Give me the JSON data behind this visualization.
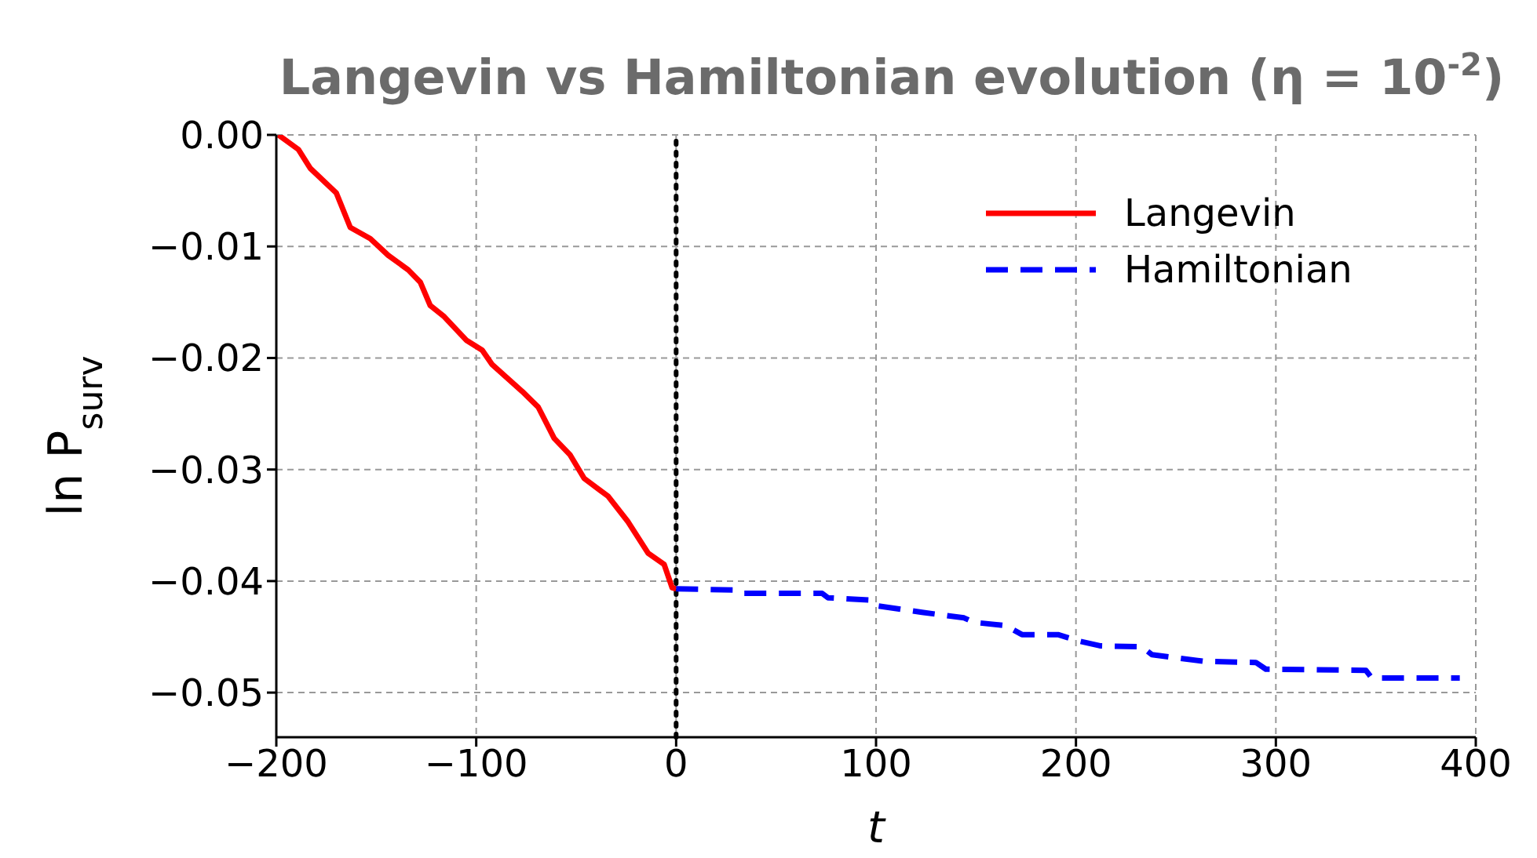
{
  "chart_data": {
    "type": "line",
    "title": "Langevin vs Hamiltonian evolution (η = 10$^{-2}$)",
    "xlabel": "t",
    "ylabel": "ln P$_{surv}$",
    "series": [
      {
        "name": "Langevin",
        "color": "#ff0000",
        "line_style": "solid",
        "x": [
          -199,
          -189,
          -183,
          -170,
          -163,
          -153,
          -144,
          -134,
          -128,
          -123,
          -116,
          -105,
          -97,
          -92,
          -77,
          -69,
          -61,
          -53,
          -46,
          -34,
          -24,
          -14,
          -6,
          -2,
          0
        ],
        "values": [
          0.0,
          -0.0013,
          -0.003,
          -0.0052,
          -0.0083,
          -0.0093,
          -0.0108,
          -0.0121,
          -0.0132,
          -0.0153,
          -0.0163,
          -0.0184,
          -0.0193,
          -0.0206,
          -0.023,
          -0.0244,
          -0.0272,
          -0.0287,
          -0.0308,
          -0.0324,
          -0.0347,
          -0.0375,
          -0.0385,
          -0.0406,
          -0.0407
        ]
      },
      {
        "name": "Hamiltonian",
        "color": "#0000ff",
        "line_style": "dashed",
        "x": [
          0,
          31,
          34,
          73,
          76,
          97,
          100,
          123,
          144,
          149,
          165,
          173,
          191,
          202,
          212,
          233,
          238,
          264,
          290,
          295,
          345,
          348,
          392
        ],
        "values": [
          -0.0407,
          -0.0408,
          -0.0411,
          -0.0411,
          -0.0415,
          -0.0417,
          -0.0422,
          -0.0428,
          -0.0433,
          -0.0437,
          -0.044,
          -0.0448,
          -0.0448,
          -0.0454,
          -0.0458,
          -0.0459,
          -0.0466,
          -0.0472,
          -0.0473,
          -0.0479,
          -0.048,
          -0.0487,
          -0.0487
        ]
      }
    ],
    "xlim": [
      -200,
      400
    ],
    "xticks": [
      -200,
      -100,
      0,
      100,
      200,
      300,
      400
    ],
    "ylim": [
      -0.054,
      0
    ],
    "yticks": [
      {
        "value": 0,
        "label": "0.00"
      },
      {
        "value": -0.01,
        "label": "−0.01"
      },
      {
        "value": -0.02,
        "label": "−0.02"
      },
      {
        "value": -0.03,
        "label": "−0.03"
      },
      {
        "value": -0.04,
        "label": "−0.04"
      },
      {
        "value": -0.05,
        "label": "−0.05"
      }
    ],
    "ref_lines": [
      {
        "axis": "x",
        "value": 0,
        "color": "#000000",
        "line_style": "dotted"
      }
    ],
    "grid": true,
    "legend": "top right",
    "marker": "none"
  }
}
